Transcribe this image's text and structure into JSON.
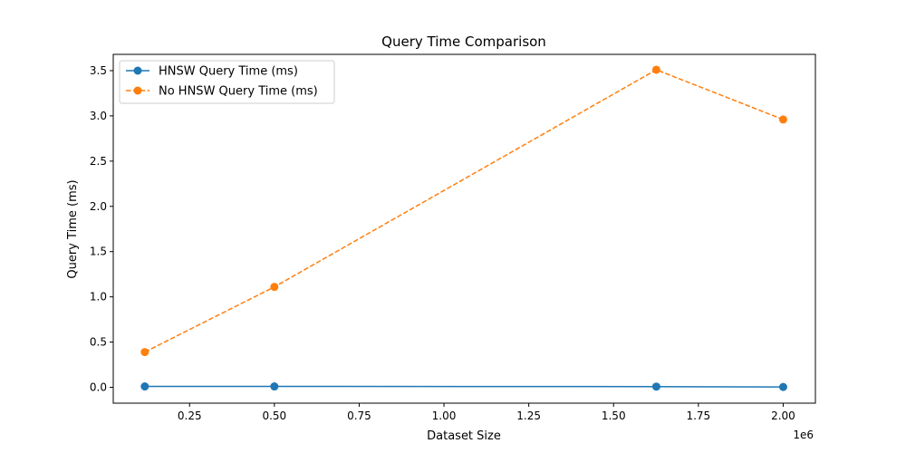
{
  "chart_data": {
    "type": "line",
    "title": "Query Time Comparison",
    "xlabel": "Dataset Size",
    "ylabel": "Query Time (ms)",
    "x_offset_label": "1e6",
    "x_scale": 1000000,
    "xlim": [
      25000,
      2095000
    ],
    "ylim": [
      -0.175,
      3.68
    ],
    "x_ticks": [
      250000,
      500000,
      750000,
      1000000,
      1250000,
      1500000,
      1750000,
      2000000
    ],
    "x_tick_labels": [
      "0.25",
      "0.50",
      "0.75",
      "1.00",
      "1.25",
      "1.50",
      "1.75",
      "2.00"
    ],
    "y_ticks": [
      0.0,
      0.5,
      1.0,
      1.5,
      2.0,
      2.5,
      3.0,
      3.5
    ],
    "y_tick_labels": [
      "0.0",
      "0.5",
      "1.0",
      "1.5",
      "2.0",
      "2.5",
      "3.0",
      "3.5"
    ],
    "grid": false,
    "legend_position": "top-left",
    "x": [
      118000,
      500000,
      1626000,
      2000000
    ],
    "series": [
      {
        "name": "HNSW Query Time (ms)",
        "values": [
          0.01,
          0.01,
          0.008,
          0.004
        ],
        "color": "#1f77b4",
        "line_style": "solid",
        "marker": "circle"
      },
      {
        "name": "No HNSW Query Time (ms)",
        "values": [
          0.39,
          1.11,
          3.51,
          2.96
        ],
        "color": "#ff7f0e",
        "line_style": "dashed",
        "marker": "circle"
      }
    ]
  }
}
